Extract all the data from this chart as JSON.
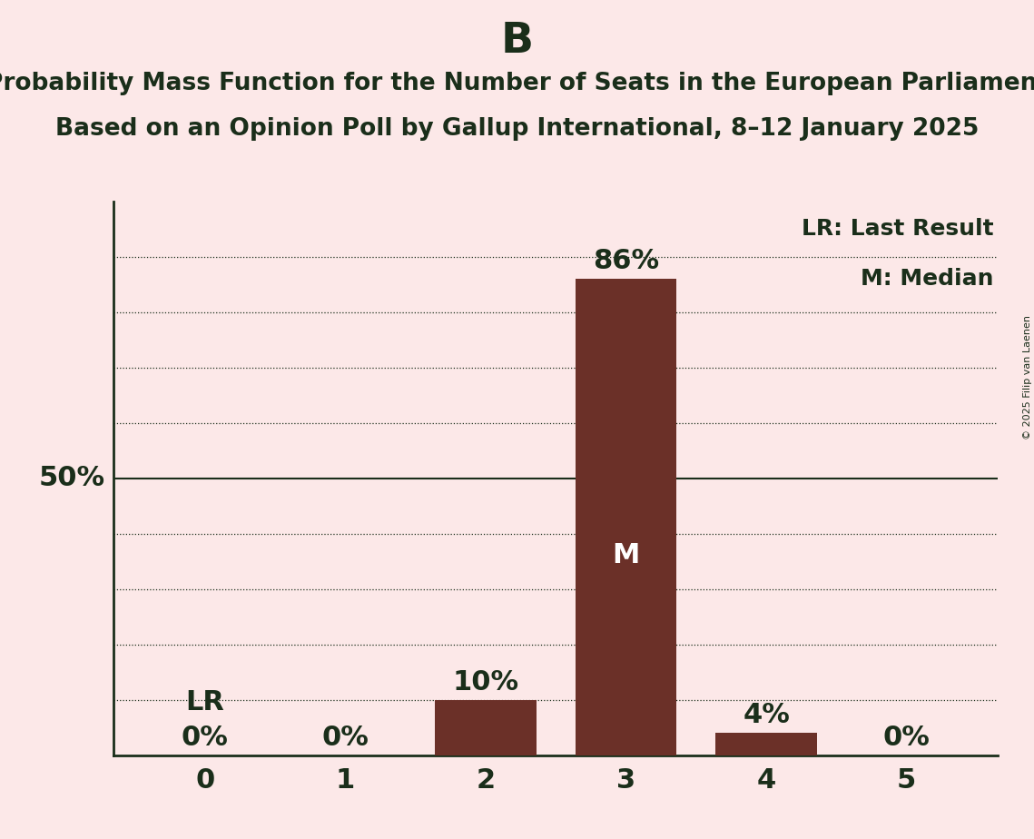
{
  "title_letter": "B",
  "title_line1": "Probability Mass Function for the Number of Seats in the European Parliament",
  "title_line2": "Based on an Opinion Poll by Gallup International, 8–12 January 2025",
  "copyright_text": "© 2025 Filip van Laenen",
  "x_values": [
    0,
    1,
    2,
    3,
    4,
    5
  ],
  "probabilities": [
    0.0,
    0.0,
    0.1,
    0.86,
    0.04,
    0.0
  ],
  "bar_color": "#6b3028",
  "background_color": "#fce8e8",
  "median_seat": 3,
  "last_result_seat": 0,
  "legend_lr": "LR: Last Result",
  "legend_m": "M: Median",
  "fifty_pct_label": "50%",
  "y_gridline_positions": [
    0.1,
    0.2,
    0.3,
    0.4,
    0.5,
    0.6,
    0.7,
    0.8,
    0.9
  ],
  "ylim": [
    0,
    1.0
  ],
  "bar_width": 0.72,
  "text_color": "#1a2e1a",
  "fifty_line_color": "#1a2e1a",
  "grid_color": "#1a2e1a",
  "title_letter_fontsize": 34,
  "title_fontsize": 19,
  "tick_fontsize": 22,
  "pct_fontsize": 22,
  "lr_fontsize": 22,
  "median_fontsize": 22,
  "legend_fontsize": 18,
  "fifty_fontsize": 22
}
